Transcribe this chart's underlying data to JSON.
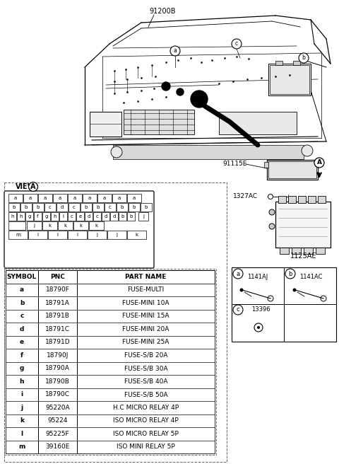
{
  "bg_color": "#ffffff",
  "diagram_label": "91200B",
  "label_91115E": "91115E",
  "label_1327AC": "1327AC",
  "label_1125AE": "1125AE",
  "label_A": "A",
  "view_a_label": "VIEW",
  "fuse_grid": {
    "row1": [
      "a",
      "a",
      "a",
      "a",
      "a",
      "a",
      "a",
      "a",
      "a"
    ],
    "row2": [
      "b",
      "b",
      "b",
      "c",
      "d",
      "c",
      "b",
      "b",
      "c",
      "b",
      "b",
      "b"
    ],
    "row3_main": [
      "h",
      "h",
      "g",
      "f",
      "g",
      "h",
      "i",
      "c",
      "e",
      "d",
      "c",
      "d",
      "d",
      "b",
      "b"
    ],
    "row3_extra": "j",
    "row4_empty": 1,
    "row4": [
      "j",
      "k",
      "k",
      "k",
      "k"
    ],
    "row5": [
      "m",
      "l",
      "l",
      "l",
      "j",
      "j",
      "k"
    ]
  },
  "table_headers": [
    "SYMBOL",
    "PNC",
    "PART NAME"
  ],
  "table_rows": [
    [
      "a",
      "18790F",
      "FUSE-MULTI"
    ],
    [
      "b",
      "18791A",
      "FUSE-MINI 10A"
    ],
    [
      "c",
      "18791B",
      "FUSE-MINI 15A"
    ],
    [
      "d",
      "18791C",
      "FUSE-MINI 20A"
    ],
    [
      "e",
      "18791D",
      "FUSE-MINI 25A"
    ],
    [
      "f",
      "18790J",
      "FUSE-S/B 20A"
    ],
    [
      "g",
      "18790A",
      "FUSE-S/B 30A"
    ],
    [
      "h",
      "18790B",
      "FUSE-S/B 40A"
    ],
    [
      "i",
      "18790C",
      "FUSE-S/B 50A"
    ],
    [
      "j",
      "95220A",
      "H.C MICRO RELAY 4P"
    ],
    [
      "k",
      "95224",
      "ISO MICRO RELAY 4P"
    ],
    [
      "l",
      "95225F",
      "ISO MICRO RELAY 5P"
    ],
    [
      "m",
      "39160E",
      "ISO MINI RELAY 5P"
    ]
  ],
  "connector_a_part": "1141AJ",
  "connector_b_part": "1141AC",
  "connector_c_part": "13396",
  "colors": {
    "line": "#000000",
    "bg": "#ffffff",
    "gray_light": "#e8e8e8",
    "gray_mid": "#cccccc",
    "dashed": "#666666"
  }
}
